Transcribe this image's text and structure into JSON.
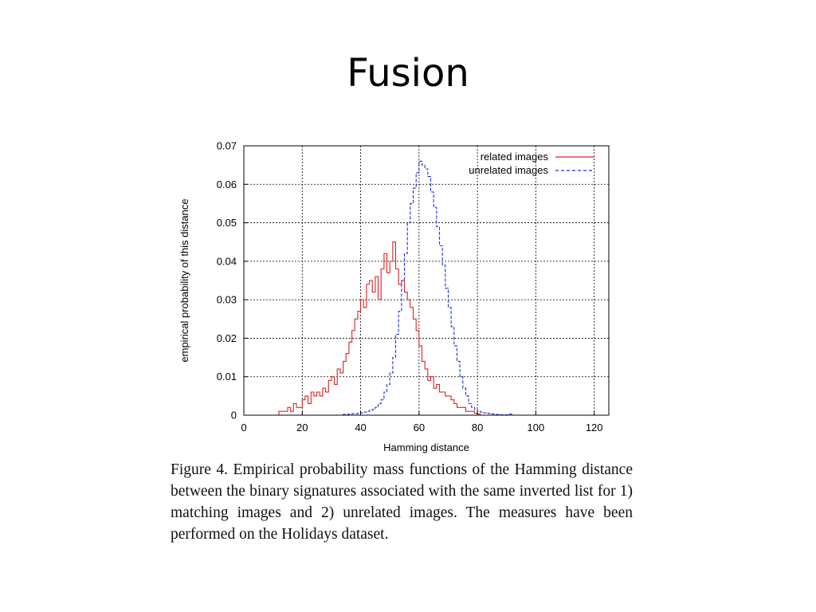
{
  "slide": {
    "title": "Fusion",
    "caption": "Figure 4. Empirical probability mass functions of the Hamming distance between the binary signatures associated with the same inverted list for 1) matching images and 2) unrelated images. The measures have been performed on the Holidays dataset."
  },
  "chart_data": {
    "type": "line",
    "title": "",
    "xlabel": "Hamming distance",
    "ylabel": "empirical probability of this distance",
    "xlim": [
      0,
      125
    ],
    "ylim": [
      0,
      0.07
    ],
    "xticks": [
      "0",
      "20",
      "40",
      "60",
      "80",
      "100",
      "120"
    ],
    "yticks": [
      "0",
      "0.01",
      "0.02",
      "0.03",
      "0.04",
      "0.05",
      "0.06",
      "0.07"
    ],
    "grid": true,
    "legend_position": "top-right",
    "series": [
      {
        "name": "related images",
        "color": "#e02020",
        "dash": "solid",
        "x": [
          12,
          13,
          14,
          15,
          16,
          17,
          18,
          19,
          20,
          21,
          22,
          23,
          24,
          25,
          26,
          27,
          28,
          29,
          30,
          31,
          32,
          33,
          34,
          35,
          36,
          37,
          38,
          39,
          40,
          41,
          42,
          43,
          44,
          45,
          46,
          47,
          48,
          49,
          50,
          51,
          52,
          53,
          54,
          55,
          56,
          57,
          58,
          59,
          60,
          61,
          62,
          63,
          64,
          65,
          66,
          67,
          68,
          69,
          70,
          71,
          72,
          73,
          74,
          75,
          76,
          77,
          78,
          79,
          80
        ],
        "y": [
          0.001,
          0.001,
          0.001,
          0.002,
          0.001,
          0.003,
          0.002,
          0.002,
          0.004,
          0.005,
          0.003,
          0.006,
          0.005,
          0.006,
          0.005,
          0.007,
          0.006,
          0.009,
          0.01,
          0.008,
          0.012,
          0.011,
          0.014,
          0.016,
          0.019,
          0.022,
          0.025,
          0.027,
          0.03,
          0.028,
          0.034,
          0.035,
          0.032,
          0.036,
          0.03,
          0.038,
          0.042,
          0.037,
          0.04,
          0.045,
          0.038,
          0.034,
          0.035,
          0.032,
          0.03,
          0.028,
          0.025,
          0.022,
          0.018,
          0.014,
          0.012,
          0.009,
          0.01,
          0.007,
          0.008,
          0.006,
          0.006,
          0.005,
          0.005,
          0.004,
          0.003,
          0.002,
          0.002,
          0.002,
          0.001,
          0.001,
          0.001,
          0.0005,
          0.0003
        ]
      },
      {
        "name": "unrelated images",
        "color": "#2030e0",
        "dash": "dashed",
        "x": [
          34,
          35,
          36,
          37,
          38,
          39,
          40,
          41,
          42,
          43,
          44,
          45,
          46,
          47,
          48,
          49,
          50,
          51,
          52,
          53,
          54,
          55,
          56,
          57,
          58,
          59,
          60,
          61,
          62,
          63,
          64,
          65,
          66,
          67,
          68,
          69,
          70,
          71,
          72,
          73,
          74,
          75,
          76,
          77,
          78,
          79,
          80,
          81,
          82,
          83,
          84,
          85,
          86,
          87,
          88,
          89,
          90,
          91
        ],
        "y": [
          0.0002,
          0.0002,
          0.0003,
          0.0004,
          0.0004,
          0.0005,
          0.0006,
          0.0008,
          0.001,
          0.0012,
          0.0015,
          0.002,
          0.003,
          0.004,
          0.006,
          0.008,
          0.011,
          0.015,
          0.021,
          0.027,
          0.035,
          0.042,
          0.05,
          0.055,
          0.059,
          0.063,
          0.066,
          0.065,
          0.064,
          0.062,
          0.058,
          0.054,
          0.049,
          0.044,
          0.039,
          0.033,
          0.028,
          0.023,
          0.018,
          0.014,
          0.01,
          0.007,
          0.005,
          0.003,
          0.002,
          0.0015,
          0.001,
          0.0008,
          0.0006,
          0.0005,
          0.0004,
          0.0003,
          0.0002,
          0.0002,
          0.0001,
          0.0001,
          0.0001,
          0.0003
        ]
      }
    ]
  }
}
